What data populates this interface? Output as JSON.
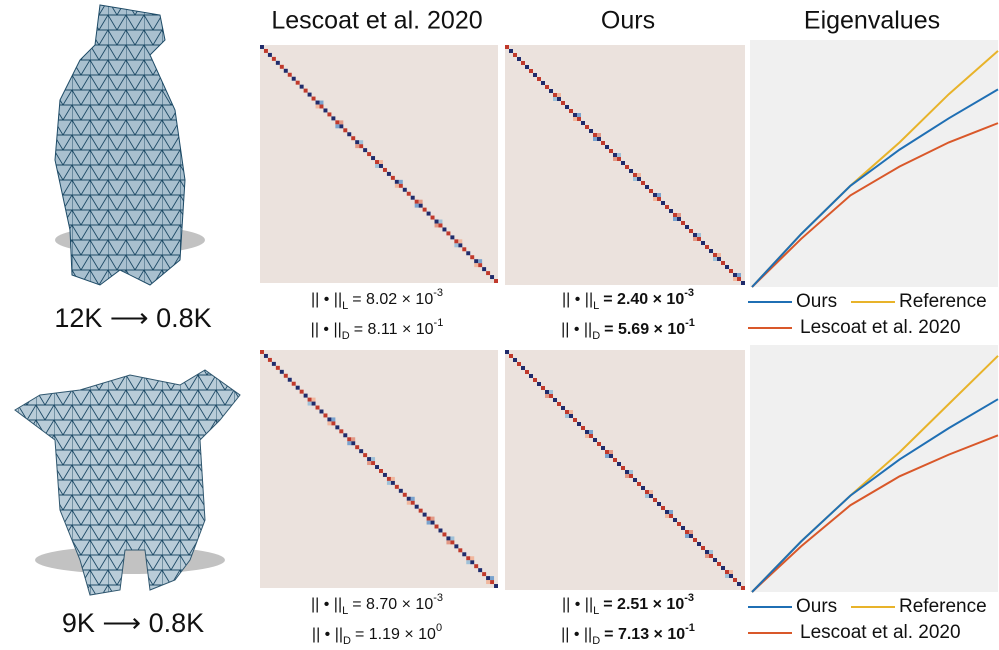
{
  "columns": [
    "Lescoat et al. 2020",
    "Ours",
    "Eigenvalues"
  ],
  "rows": [
    {
      "label": "12K ⟶ 0.8K",
      "lescoat_norms": [
        {
          "norm": "|| • ||",
          "sub": "L",
          "eq": "= 8.02 × 10",
          "exp": "-3"
        },
        {
          "norm": "|| • ||",
          "sub": "D",
          "eq": "= 8.11 × 10",
          "exp": "-1"
        }
      ],
      "ours_norms": [
        {
          "norm": "|| • ||",
          "sub": "L",
          "eq": "= 2.40 × 10",
          "exp": "-3"
        },
        {
          "norm": "|| • ||",
          "sub": "D",
          "eq": "= 5.69 × 10",
          "exp": "-1"
        }
      ],
      "eigenvalues": {
        "x": [
          0,
          0.2,
          0.4,
          0.6,
          0.8,
          1
        ],
        "xlim": [
          0,
          1
        ],
        "ylim": [
          0,
          1
        ],
        "series": [
          {
            "name": "Ours",
            "color": "#1f6fb4",
            "values": [
              0,
              0.22,
              0.42,
              0.57,
              0.7,
              0.82
            ]
          },
          {
            "name": "Reference",
            "color": "#e8b32a",
            "values": [
              0,
              0.22,
              0.42,
              0.6,
              0.8,
              0.98
            ]
          },
          {
            "name": "Lescoat et al. 2020",
            "color": "#d9582a",
            "values": [
              0,
              0.2,
              0.38,
              0.5,
              0.6,
              0.68
            ]
          }
        ]
      }
    },
    {
      "label": "9K ⟶ 0.8K",
      "lescoat_norms": [
        {
          "norm": "|| • ||",
          "sub": "L",
          "eq": "= 8.70 × 10",
          "exp": "-3"
        },
        {
          "norm": "|| • ||",
          "sub": "D",
          "eq": "= 1.19 × 10",
          "exp": "0"
        }
      ],
      "ours_norms": [
        {
          "norm": "|| • ||",
          "sub": "L",
          "eq": "= 2.51 × 10",
          "exp": "-3"
        },
        {
          "norm": "|| • ||",
          "sub": "D",
          "eq": "= 7.13 × 10",
          "exp": "-1"
        }
      ],
      "eigenvalues": {
        "x": [
          0,
          0.2,
          0.4,
          0.6,
          0.8,
          1
        ],
        "xlim": [
          0,
          1
        ],
        "ylim": [
          0,
          1
        ],
        "series": [
          {
            "name": "Ours",
            "color": "#1f6fb4",
            "values": [
              0,
              0.21,
              0.4,
              0.55,
              0.68,
              0.8
            ]
          },
          {
            "name": "Reference",
            "color": "#e8b32a",
            "values": [
              0,
              0.21,
              0.4,
              0.58,
              0.78,
              0.98
            ]
          },
          {
            "name": "Lescoat et al. 2020",
            "color": "#d9582a",
            "values": [
              0,
              0.19,
              0.36,
              0.48,
              0.57,
              0.65
            ]
          }
        ]
      }
    }
  ]
}
